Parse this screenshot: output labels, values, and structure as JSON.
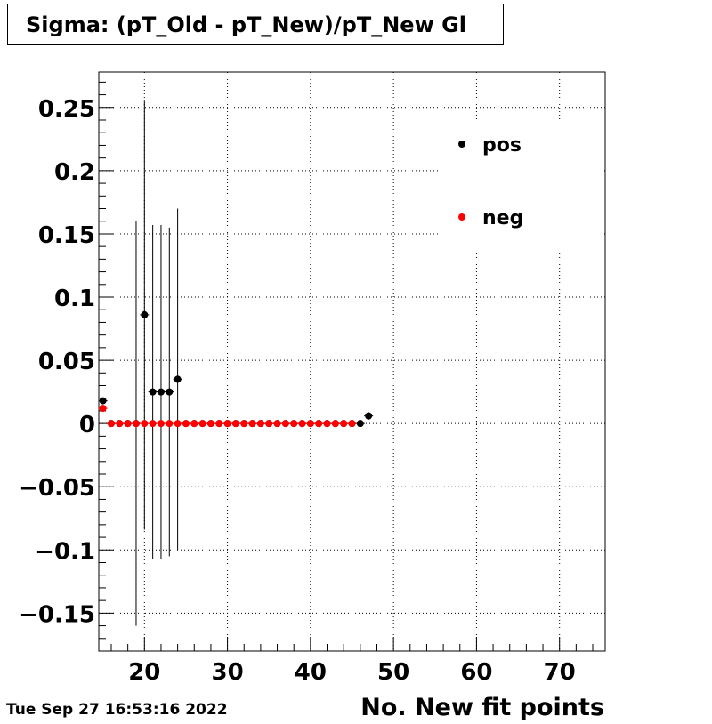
{
  "header": {
    "title": "Sigma: (pT_Old - pT_New)/pT_New Gl"
  },
  "footer": {
    "timestamp": "Tue Sep 27 16:53:16 2022"
  },
  "chart_data": {
    "type": "scatter",
    "title": "Sigma: (pT_Old - pT_New)/pT_New Gl",
    "xlabel": "No. New fit points",
    "ylabel": "",
    "xlim": [
      14.5,
      75.5
    ],
    "ylim": [
      -0.18,
      0.278
    ],
    "grid": true,
    "legend_position": "top-right",
    "x_ticks": [
      20,
      30,
      40,
      50,
      60,
      70
    ],
    "x_tick_labels": [
      "20",
      "30",
      "40",
      "50",
      "60",
      "70"
    ],
    "y_ticks": [
      -0.15,
      -0.1,
      -0.05,
      0,
      0.05,
      0.1,
      0.15,
      0.2,
      0.25
    ],
    "y_tick_labels": [
      "−0.15",
      "−0.1",
      "−0.05",
      "0",
      "0.05",
      "0.1",
      "0.15",
      "0.2",
      "0.25"
    ],
    "colors": {
      "pos": "#000000",
      "neg": "#ff0000"
    },
    "series": [
      {
        "name": "pos",
        "color": "#000000",
        "points": [
          {
            "x": 15,
            "y": 0.018,
            "err": 0.002
          },
          {
            "x": 16,
            "y": 0.0,
            "err": 0.0
          },
          {
            "x": 17,
            "y": 0.0,
            "err": 0.0
          },
          {
            "x": 18,
            "y": 0.0,
            "err": 0.0
          },
          {
            "x": 19,
            "y": 0.0,
            "err": 0.16
          },
          {
            "x": 20,
            "y": 0.086,
            "err": 0.17
          },
          {
            "x": 21,
            "y": 0.025,
            "err": 0.132
          },
          {
            "x": 22,
            "y": 0.025,
            "err": 0.132
          },
          {
            "x": 23,
            "y": 0.025,
            "err": 0.13
          },
          {
            "x": 24,
            "y": 0.035,
            "err": 0.135
          },
          {
            "x": 25,
            "y": 0.0,
            "err": 0.0
          },
          {
            "x": 26,
            "y": 0.0,
            "err": 0.0
          },
          {
            "x": 27,
            "y": 0.0,
            "err": 0.0
          },
          {
            "x": 28,
            "y": 0.0,
            "err": 0.0
          },
          {
            "x": 29,
            "y": 0.0,
            "err": 0.0
          },
          {
            "x": 30,
            "y": 0.0,
            "err": 0.0
          },
          {
            "x": 31,
            "y": 0.0,
            "err": 0.0
          },
          {
            "x": 32,
            "y": 0.0,
            "err": 0.0
          },
          {
            "x": 33,
            "y": 0.0,
            "err": 0.0
          },
          {
            "x": 34,
            "y": 0.0,
            "err": 0.0
          },
          {
            "x": 35,
            "y": 0.0,
            "err": 0.0
          },
          {
            "x": 36,
            "y": 0.0,
            "err": 0.0
          },
          {
            "x": 37,
            "y": 0.0,
            "err": 0.0
          },
          {
            "x": 38,
            "y": 0.0,
            "err": 0.0
          },
          {
            "x": 39,
            "y": 0.0,
            "err": 0.0
          },
          {
            "x": 40,
            "y": 0.0,
            "err": 0.0
          },
          {
            "x": 41,
            "y": 0.0,
            "err": 0.0
          },
          {
            "x": 42,
            "y": 0.0,
            "err": 0.0
          },
          {
            "x": 43,
            "y": 0.0,
            "err": 0.0
          },
          {
            "x": 44,
            "y": 0.0,
            "err": 0.0
          },
          {
            "x": 45,
            "y": 0.0,
            "err": 0.0
          },
          {
            "x": 46,
            "y": 0.0,
            "err": 0.002
          },
          {
            "x": 47,
            "y": 0.006,
            "err": 0.003
          }
        ]
      },
      {
        "name": "neg",
        "color": "#ff0000",
        "points": [
          {
            "x": 15,
            "y": 0.012,
            "err": 0.002
          },
          {
            "x": 16,
            "y": 0.0,
            "err": 0.0
          },
          {
            "x": 17,
            "y": 0.0,
            "err": 0.0
          },
          {
            "x": 18,
            "y": 0.0,
            "err": 0.0
          },
          {
            "x": 19,
            "y": 0.0,
            "err": 0.0
          },
          {
            "x": 20,
            "y": 0.0,
            "err": 0.0
          },
          {
            "x": 21,
            "y": 0.0,
            "err": 0.0
          },
          {
            "x": 22,
            "y": 0.0,
            "err": 0.0
          },
          {
            "x": 23,
            "y": 0.0,
            "err": 0.0
          },
          {
            "x": 24,
            "y": 0.0,
            "err": 0.0
          },
          {
            "x": 25,
            "y": 0.0,
            "err": 0.0
          },
          {
            "x": 26,
            "y": 0.0,
            "err": 0.0
          },
          {
            "x": 27,
            "y": 0.0,
            "err": 0.0
          },
          {
            "x": 28,
            "y": 0.0,
            "err": 0.0
          },
          {
            "x": 29,
            "y": 0.0,
            "err": 0.0
          },
          {
            "x": 30,
            "y": 0.0,
            "err": 0.0
          },
          {
            "x": 31,
            "y": 0.0,
            "err": 0.0
          },
          {
            "x": 32,
            "y": 0.0,
            "err": 0.0
          },
          {
            "x": 33,
            "y": 0.0,
            "err": 0.0
          },
          {
            "x": 34,
            "y": 0.0,
            "err": 0.0
          },
          {
            "x": 35,
            "y": 0.0,
            "err": 0.0
          },
          {
            "x": 36,
            "y": 0.0,
            "err": 0.0
          },
          {
            "x": 37,
            "y": 0.0,
            "err": 0.0
          },
          {
            "x": 38,
            "y": 0.0,
            "err": 0.0
          },
          {
            "x": 39,
            "y": 0.0,
            "err": 0.0
          },
          {
            "x": 40,
            "y": 0.0,
            "err": 0.0
          },
          {
            "x": 41,
            "y": 0.0,
            "err": 0.0
          },
          {
            "x": 42,
            "y": 0.0,
            "err": 0.0
          },
          {
            "x": 43,
            "y": 0.0,
            "err": 0.0
          },
          {
            "x": 44,
            "y": 0.0,
            "err": 0.0
          },
          {
            "x": 45,
            "y": 0.0,
            "err": 0.0
          }
        ]
      }
    ]
  }
}
